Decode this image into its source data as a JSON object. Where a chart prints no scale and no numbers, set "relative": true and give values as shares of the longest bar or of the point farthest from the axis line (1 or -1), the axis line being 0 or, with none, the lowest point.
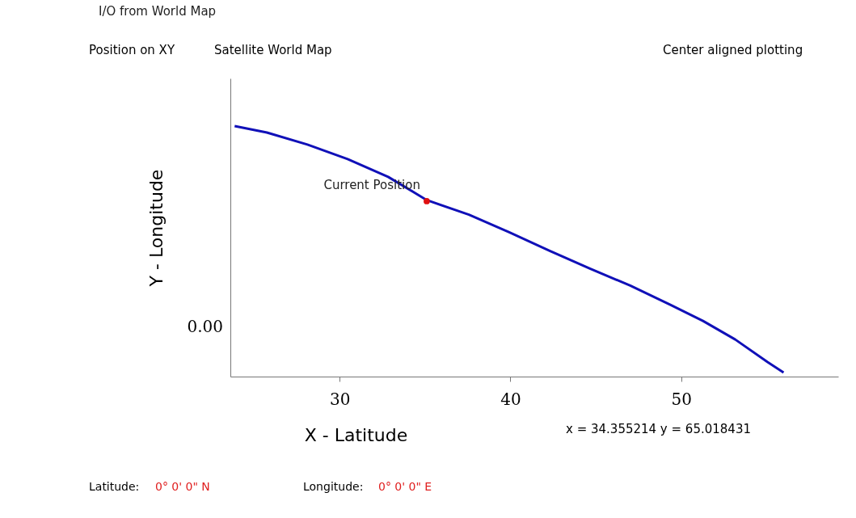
{
  "chart_data": {
    "type": "line",
    "title": "I/O from World Map",
    "xlabel": "X - Latitude",
    "ylabel": "Y - Longitude",
    "relative": true,
    "xlim": [
      23.6,
      59.2
    ],
    "xticks": [
      30,
      40,
      50
    ],
    "grid": false,
    "line_style": "solid",
    "series": [
      {
        "color": "#1010b8",
        "x": [
          23.85,
          25.74,
          28.11,
          30.47,
          32.84,
          35.11,
          37.57,
          39.93,
          42.3,
          44.66,
          47.02,
          49.39,
          51.28,
          53.17,
          55.06,
          56.0
        ],
        "values": [
          1.0,
          0.974,
          0.926,
          0.868,
          0.797,
          0.704,
          0.646,
          0.576,
          0.502,
          0.431,
          0.363,
          0.286,
          0.222,
          0.148,
          0.058,
          0.016
        ]
      },
      {
        "type": "scatter",
        "color": "#e01010",
        "x": [
          35.1
        ],
        "values": [
          0.7
        ]
      }
    ],
    "annotations": [
      {
        "text": "Current Position",
        "x": 35.1,
        "y": 0.7
      },
      "Position on XY",
      "Satellite World Map",
      "Center aligned plotting",
      "0.00",
      "x = 34.355214 y = 65.018431",
      "Latitude:",
      "0° 0' 0\" N",
      "Longitude:",
      "0° 0' 0\" E"
    ]
  }
}
